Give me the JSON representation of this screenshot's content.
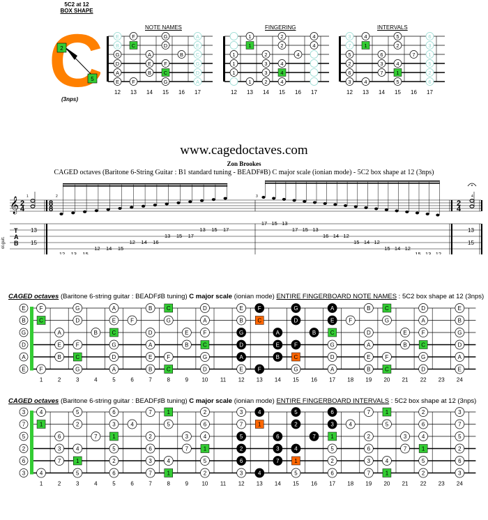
{
  "header": {
    "shape_label": "5C2 at 12",
    "shape_type": "BOX SHAPE",
    "shape_letter": "C",
    "shape_marks": [
      "2",
      "5"
    ],
    "nps_label": "(3nps)",
    "panel_titles": [
      "NOTE NAMES",
      "FINGERING",
      "INTERVALS"
    ],
    "panel_frets": [
      "12",
      "13",
      "14",
      "15",
      "16",
      "17"
    ]
  },
  "diagrams": {
    "note_names": [
      [
        "E",
        "F",
        "",
        "G",
        "",
        "A"
      ],
      [
        "B",
        "C",
        "",
        "D",
        "",
        "E"
      ],
      [
        "G",
        "",
        "A",
        "",
        "B",
        "C"
      ],
      [
        "D",
        "",
        "E",
        "F",
        "",
        "G"
      ],
      [
        "A",
        "",
        "B",
        "C",
        "",
        "D"
      ],
      [
        "E",
        "F",
        "",
        "G",
        "",
        "A"
      ]
    ],
    "fingering": [
      [
        "",
        "1",
        "",
        "2",
        "",
        "4"
      ],
      [
        "",
        "1",
        "",
        "2",
        "",
        "4"
      ],
      [
        "1",
        "",
        "2",
        "",
        "4",
        ""
      ],
      [
        "1",
        "",
        "3",
        "4",
        "",
        ""
      ],
      [
        "1",
        "",
        "3",
        "4",
        "",
        ""
      ],
      [
        "",
        "1",
        "2",
        "4",
        "",
        ""
      ]
    ],
    "intervals": [
      [
        "3",
        "4",
        "",
        "5",
        "",
        "6"
      ],
      [
        "7",
        "1",
        "",
        "2",
        "",
        "3"
      ],
      [
        "5",
        "",
        "6",
        "",
        "7",
        "1"
      ],
      [
        "2",
        "",
        "3",
        "4",
        "",
        "5"
      ],
      [
        "6",
        "",
        "7",
        "1",
        "",
        "2"
      ],
      [
        "3",
        "4",
        "",
        "5",
        "",
        "6"
      ]
    ]
  },
  "site": {
    "url": "www.cagedoctaves.com",
    "author": "Zon Brookes",
    "description": "CAGED octaves (Baritone 6-String Guitar : B1 standard tuning - BEADF#B) C major scale (ionian mode) - 5C2 box shape at 12 (3nps)"
  },
  "score": {
    "instrument": "ol.guit.",
    "tab_letters": [
      "T",
      "A",
      "B"
    ],
    "time_sig_a": [
      "2",
      "4"
    ],
    "time_sig_b": [
      "8",
      "8"
    ],
    "time_sig_c": [
      "2",
      "4"
    ],
    "measure_numbers": [
      "1",
      "2",
      "3",
      "4"
    ],
    "tab_m1": [
      "13",
      "15"
    ],
    "tab_m2": [
      "12",
      "13",
      "15",
      "12",
      "14",
      "15",
      "12",
      "14",
      "16",
      "13",
      "15",
      "17",
      "13",
      "15",
      "17"
    ],
    "tab_m3": [
      "17",
      "15",
      "13",
      "17",
      "15",
      "13",
      "16",
      "14",
      "12",
      "15",
      "14",
      "12",
      "15",
      "14",
      "12",
      "15",
      "13",
      "12"
    ],
    "tab_m4": [
      "13",
      "15"
    ]
  },
  "fullboard1": {
    "title_italic": "CAGED octaves",
    "title_rest": " (Baritone 6-string guitar : BEADF♯B tuning) ",
    "title_bold1": "C major scale",
    "title_mode": " (ionian mode) ",
    "title_underline": "ENTIRE FINGERBOARD NOTE NAMES",
    "title_tail": " : 5C2 box shape at 12 (3nps)",
    "open": [
      "E",
      "B",
      "G",
      "D",
      "A",
      "E"
    ],
    "frets": [
      "1",
      "2",
      "3",
      "4",
      "5",
      "6",
      "7",
      "8",
      "9",
      "10",
      "11",
      "12",
      "13",
      "14",
      "15",
      "16",
      "17",
      "18",
      "19",
      "20",
      "21",
      "22",
      "23",
      "24"
    ],
    "rows": [
      [
        "F",
        "",
        "G",
        "",
        "A",
        "",
        "B",
        "C",
        "",
        "D",
        "",
        "E",
        "F",
        "",
        "G",
        "",
        "A",
        "",
        "B",
        "C",
        "",
        "D",
        "",
        "E"
      ],
      [
        "C",
        "",
        "D",
        "",
        "E",
        "F",
        "",
        "G",
        "",
        "A",
        "",
        "B",
        "C",
        "",
        "D",
        "",
        "E",
        "F",
        "",
        "G",
        "",
        "A",
        "",
        "B"
      ],
      [
        "",
        "A",
        "",
        "B",
        "C",
        "",
        "D",
        "",
        "E",
        "F",
        "",
        "G",
        "",
        "A",
        "",
        "B",
        "C",
        "",
        "D",
        "",
        "E",
        "F",
        "",
        "G"
      ],
      [
        "",
        "E",
        "F",
        "",
        "G",
        "",
        "A",
        "",
        "B",
        "C",
        "",
        "D",
        "",
        "E",
        "F",
        "",
        "G",
        "",
        "A",
        "",
        "B",
        "C",
        "",
        "D"
      ],
      [
        "",
        "B",
        "C",
        "",
        "D",
        "",
        "E",
        "F",
        "",
        "G",
        "",
        "A",
        "",
        "B",
        "C",
        "",
        "D",
        "",
        "E",
        "F",
        "",
        "G",
        "",
        "A"
      ],
      [
        "F",
        "",
        "G",
        "",
        "A",
        "",
        "B",
        "C",
        "",
        "D",
        "",
        "E",
        "F",
        "",
        "G",
        "",
        "A",
        "",
        "B",
        "C",
        "",
        "D",
        "",
        "E"
      ]
    ]
  },
  "fullboard2": {
    "title_italic": "CAGED octaves",
    "title_rest": " (Baritone 6-string guitar : BEADF♯B tuning) ",
    "title_bold1": "C major scale",
    "title_mode": " (ionian mode) ",
    "title_underline": "ENTIRE FINGERBOARD INTERVALS",
    "title_tail": " : 5C2 box shape at 12 (3nps)",
    "open": [
      "3",
      "7",
      "5",
      "2",
      "6",
      "3"
    ],
    "rows": [
      [
        "4",
        "",
        "5",
        "",
        "6",
        "",
        "7",
        "1",
        "",
        "2",
        "",
        "3",
        "4",
        "",
        "5",
        "",
        "6",
        "",
        "7",
        "1",
        "",
        "2",
        "",
        "3"
      ],
      [
        "1",
        "",
        "2",
        "",
        "3",
        "4",
        "",
        "5",
        "",
        "6",
        "",
        "7",
        "1",
        "",
        "2",
        "",
        "3",
        "4",
        "",
        "5",
        "",
        "6",
        "",
        "7"
      ],
      [
        "",
        "6",
        "",
        "7",
        "1",
        "",
        "2",
        "",
        "3",
        "4",
        "",
        "5",
        "",
        "6",
        "",
        "7",
        "1",
        "",
        "2",
        "",
        "3",
        "4",
        "",
        "5"
      ],
      [
        "",
        "3",
        "4",
        "",
        "5",
        "",
        "6",
        "",
        "7",
        "1",
        "",
        "2",
        "",
        "3",
        "4",
        "",
        "5",
        "",
        "6",
        "",
        "7",
        "1",
        "",
        "2"
      ],
      [
        "",
        "7",
        "1",
        "",
        "2",
        "",
        "3",
        "4",
        "",
        "5",
        "",
        "6",
        "",
        "7",
        "1",
        "",
        "2",
        "",
        "3",
        "4",
        "",
        "5",
        "",
        "6"
      ],
      [
        "4",
        "",
        "5",
        "",
        "6",
        "",
        "7",
        "1",
        "",
        "2",
        "",
        "3",
        "4",
        "",
        "5",
        "",
        "6",
        "",
        "7",
        "1",
        "",
        "2",
        "",
        "3"
      ]
    ]
  },
  "colors": {
    "green": "#33cc33",
    "orange": "#ff6600",
    "black": "#000000",
    "teal": "#8fd8cf"
  }
}
